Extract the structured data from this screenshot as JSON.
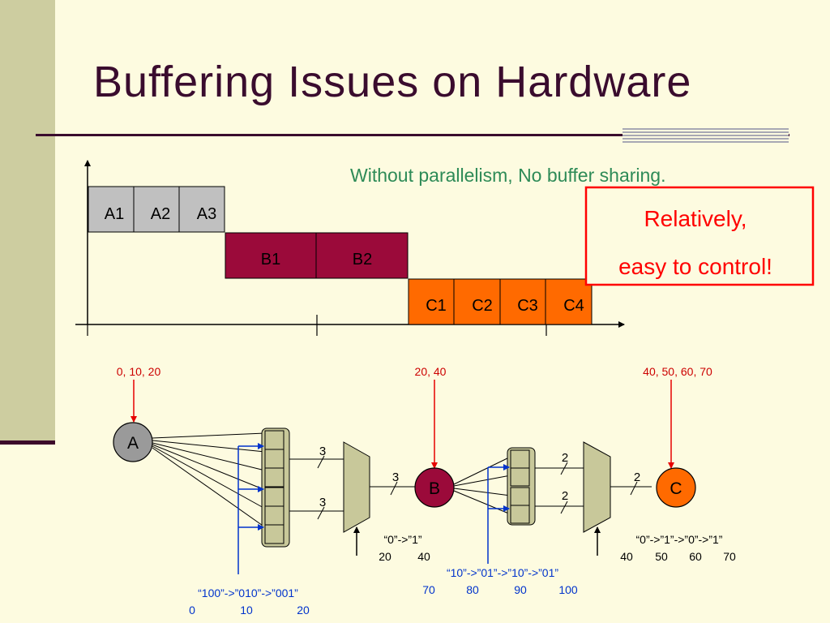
{
  "slide": {
    "title": "Buffering Issues on Hardware",
    "subtitle": "Without parallelism, No buffer sharing.",
    "callout": {
      "line1": "Relatively,",
      "line2": "easy to control!"
    }
  },
  "colors": {
    "a_block": "#c0c0c0",
    "b_block": "#9b0a3a",
    "c_block": "#ff6a00",
    "callout_border": "#ff0000",
    "subtitle": "#2e8b57",
    "arrow_red": "#e60000",
    "arrow_blue": "#0033cc"
  },
  "timeline": {
    "a_blocks": [
      "A1",
      "A2",
      "A3"
    ],
    "b_blocks": [
      "B1",
      "B2"
    ],
    "c_blocks": [
      "C1",
      "C2",
      "C3",
      "C4"
    ]
  },
  "schedules": {
    "a_inputs": "0, 10, 20",
    "b_inputs": "20, 40",
    "c_inputs": "40, 50, 60, 70"
  },
  "circuit": {
    "node_a": "A",
    "node_b": "B",
    "node_c": "C",
    "bus_widths": {
      "mux1_top": "3",
      "mux1_bottom": "3",
      "to_b": "3",
      "mux2_top": "2",
      "mux2_bottom": "2",
      "to_c": "2"
    },
    "sel1": {
      "sequence": "“100”->”010”->”001”",
      "times": [
        "0",
        "10",
        "20"
      ]
    },
    "sel2a": {
      "sequence": "“0”->”1”",
      "times": [
        "20",
        "40"
      ]
    },
    "sel2b": {
      "sequence": "“10”->”01”->”10”->”01”",
      "times": [
        "70",
        "80",
        "90",
        "100"
      ]
    },
    "sel3": {
      "sequence": "“0”->”1”->”0”->”1”",
      "times": [
        "40",
        "50",
        "60",
        "70"
      ]
    }
  }
}
